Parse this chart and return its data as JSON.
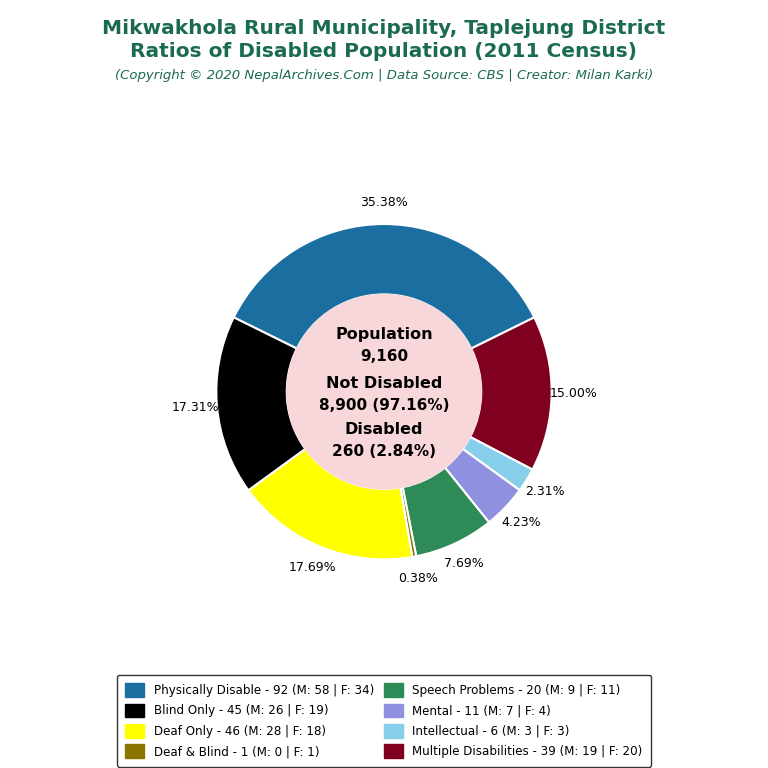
{
  "title_line1": "Mikwakhola Rural Municipality, Taplejung District",
  "title_line2": "Ratios of Disabled Population (2011 Census)",
  "subtitle": "(Copyright © 2020 NepalArchives.Com | Data Source: CBS | Creator: Milan Karki)",
  "title_color": "#1a6b52",
  "subtitle_color": "#1a6b52",
  "total_population": 9160,
  "not_disabled": 8900,
  "not_disabled_pct": 97.16,
  "disabled": 260,
  "disabled_pct": 2.84,
  "center_bg_color": "#f8d7da",
  "slices": [
    {
      "label": "Physically Disable - 92 (M: 58 | F: 34)",
      "value": 92,
      "pct": 35.38,
      "color": "#1a6fa0"
    },
    {
      "label": "Multiple Disabilities - 39 (M: 19 | F: 20)",
      "value": 39,
      "pct": 15.0,
      "color": "#800020"
    },
    {
      "label": "Intellectual - 6 (M: 3 | F: 3)",
      "value": 6,
      "pct": 2.31,
      "color": "#87ceeb"
    },
    {
      "label": "Mental - 11 (M: 7 | F: 4)",
      "value": 11,
      "pct": 4.23,
      "color": "#9090e0"
    },
    {
      "label": "Speech Problems - 20 (M: 9 | F: 11)",
      "value": 20,
      "pct": 7.69,
      "color": "#2e8b57"
    },
    {
      "label": "Deaf & Blind - 1 (M: 0 | F: 1)",
      "value": 1,
      "pct": 0.38,
      "color": "#8b7500"
    },
    {
      "label": "Deaf Only - 46 (M: 28 | F: 18)",
      "value": 46,
      "pct": 17.69,
      "color": "#ffff00"
    },
    {
      "label": "Blind Only - 45 (M: 26 | F: 19)",
      "value": 45,
      "pct": 17.31,
      "color": "#000000"
    }
  ],
  "legend_order": [
    "Physically Disable - 92 (M: 58 | F: 34)",
    "Blind Only - 45 (M: 26 | F: 19)",
    "Deaf Only - 46 (M: 28 | F: 18)",
    "Deaf & Blind - 1 (M: 0 | F: 1)",
    "Speech Problems - 20 (M: 9 | F: 11)",
    "Mental - 11 (M: 7 | F: 4)",
    "Intellectual - 6 (M: 3 | F: 3)",
    "Multiple Disabilities - 39 (M: 19 | F: 20)"
  ]
}
